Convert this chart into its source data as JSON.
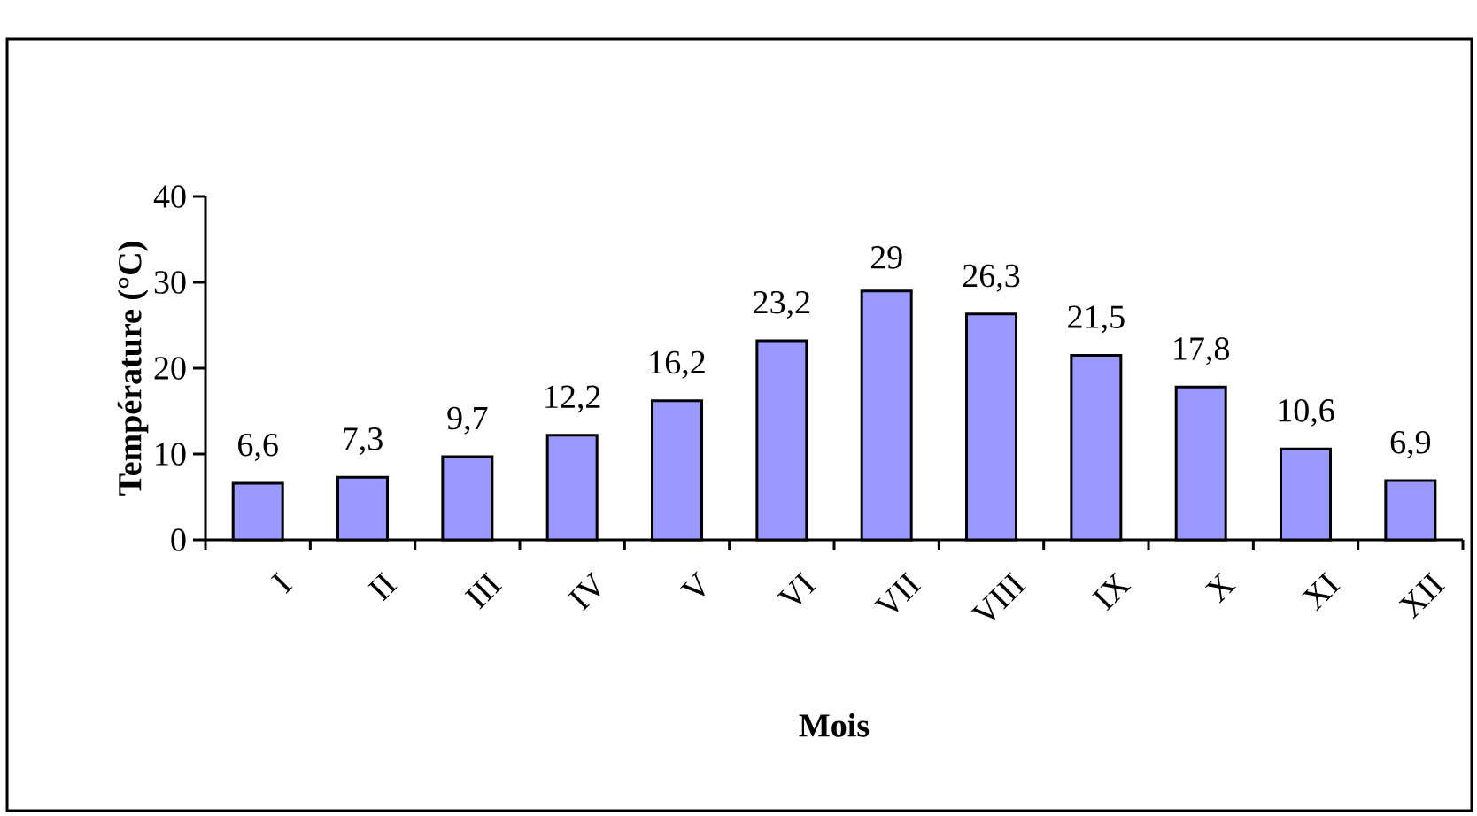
{
  "chart_data": {
    "type": "bar",
    "xlabel": "Mois",
    "ylabel": "Température (°C)",
    "categories": [
      "I",
      "II",
      "III",
      "IV",
      "V",
      "VI",
      "VII",
      "VIII",
      "IX",
      "X",
      "XI",
      "XII"
    ],
    "values": [
      6.6,
      7.3,
      9.7,
      12.2,
      16.2,
      23.2,
      29,
      26.3,
      21.5,
      17.8,
      10.6,
      6.9
    ],
    "value_labels": [
      "6,6",
      "7,3",
      "9,7",
      "12,2",
      "16,2",
      "23,2",
      "29",
      "26,3",
      "21,5",
      "17,8",
      "10,6",
      "6,9"
    ],
    "color": "#9999ff",
    "ylim": [
      0,
      40
    ],
    "yticks": [
      0,
      10,
      20,
      30,
      40
    ]
  }
}
